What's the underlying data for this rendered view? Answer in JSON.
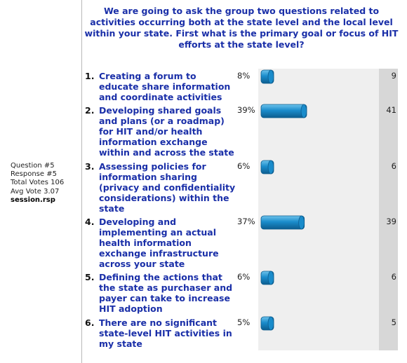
{
  "question": "We are going to ask the group two questions related to activities occurring both at the state level and the local level within your state. First what is the primary goal or focus of HIT efforts at the state level?",
  "meta": {
    "question_no": "Question #5",
    "response_no": "Response #5",
    "total_votes": "Total Votes 106",
    "avg_vote": "Avg Vote 3.07",
    "session": "session.rsp"
  },
  "colors": {
    "bar": "#1a8ccb",
    "bar_dark": "#0d5d8f",
    "bar_light": "#6ec3ec",
    "question_text": "#1a2fa8"
  },
  "chart_data": {
    "type": "bar",
    "orientation": "horizontal",
    "title": "We are going to ask the group two questions related to activities occurring both at the state level and the local level within your state. First what is the primary goal or focus of HIT efforts at the state level?",
    "categories": [
      {
        "num": "1.",
        "label": "Creating a forum to educate share information and coordinate activities"
      },
      {
        "num": "2.",
        "label": "Developing shared goals and plans (or a roadmap) for HIT and/or health information exchange within and across the state"
      },
      {
        "num": "3.",
        "label": "Assessing policies for information sharing (privacy and confidentiality considerations) within the state"
      },
      {
        "num": "4.",
        "label": "Developing and implementing an actual health information exchange infrastructure across your state"
      },
      {
        "num": "5.",
        "label": "Defining the actions that the state as purchaser and payer can take to increase HIT adoption"
      },
      {
        "num": "6.",
        "label": "There are no significant state-level HIT activities in my state"
      }
    ],
    "percent_labels": [
      "8%",
      "39%",
      "6%",
      "37%",
      "6%",
      "5%"
    ],
    "percents": [
      8,
      39,
      6,
      37,
      6,
      5
    ],
    "counts": [
      9,
      41,
      6,
      39,
      6,
      5
    ],
    "xlim": [
      0,
      100
    ],
    "grid": false,
    "legend": "none"
  }
}
